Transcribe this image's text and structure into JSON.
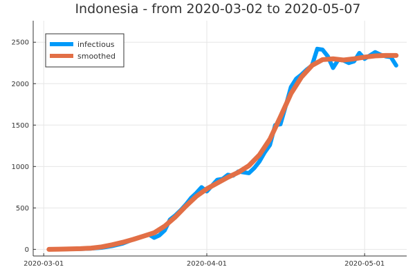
{
  "chart_data": {
    "type": "line",
    "title": "Indonesia - from 2020-03-02 to 2020-05-07",
    "xlabel": "",
    "ylabel": "",
    "x_start": "2020-03-02",
    "x_end": "2020-05-07",
    "xlim": [
      "2020-02-28",
      "2020-05-09"
    ],
    "ylim": [
      -80,
      2760
    ],
    "x_ticks": [
      "2020-03-01",
      "2020-04-01",
      "2020-05-01"
    ],
    "y_ticks": [
      0,
      500,
      1000,
      1500,
      2000,
      2500
    ],
    "grid": true,
    "legend_position": "top-left",
    "series": [
      {
        "name": "infectious",
        "color": "#009af9",
        "points": [
          [
            "2020-03-02",
            0
          ],
          [
            "2020-03-04",
            1
          ],
          [
            "2020-03-06",
            3
          ],
          [
            "2020-03-08",
            5
          ],
          [
            "2020-03-10",
            10
          ],
          [
            "2020-03-12",
            20
          ],
          [
            "2020-03-14",
            40
          ],
          [
            "2020-03-16",
            70
          ],
          [
            "2020-03-18",
            120
          ],
          [
            "2020-03-19",
            140
          ],
          [
            "2020-03-20",
            160
          ],
          [
            "2020-03-21",
            180
          ],
          [
            "2020-03-22",
            140
          ],
          [
            "2020-03-23",
            170
          ],
          [
            "2020-03-24",
            230
          ],
          [
            "2020-03-25",
            360
          ],
          [
            "2020-03-26",
            410
          ],
          [
            "2020-03-27",
            470
          ],
          [
            "2020-03-28",
            540
          ],
          [
            "2020-03-29",
            620
          ],
          [
            "2020-03-30",
            680
          ],
          [
            "2020-03-31",
            750
          ],
          [
            "2020-04-01",
            700
          ],
          [
            "2020-04-02",
            770
          ],
          [
            "2020-04-03",
            840
          ],
          [
            "2020-04-04",
            850
          ],
          [
            "2020-04-05",
            900
          ],
          [
            "2020-04-06",
            890
          ],
          [
            "2020-04-07",
            940
          ],
          [
            "2020-04-08",
            930
          ],
          [
            "2020-04-09",
            920
          ],
          [
            "2020-04-10",
            980
          ],
          [
            "2020-04-11",
            1060
          ],
          [
            "2020-04-12",
            1170
          ],
          [
            "2020-04-13",
            1260
          ],
          [
            "2020-04-14",
            1500
          ],
          [
            "2020-04-15",
            1510
          ],
          [
            "2020-04-16",
            1730
          ],
          [
            "2020-04-17",
            1960
          ],
          [
            "2020-04-18",
            2060
          ],
          [
            "2020-04-19",
            2110
          ],
          [
            "2020-04-20",
            2170
          ],
          [
            "2020-04-21",
            2220
          ],
          [
            "2020-04-22",
            2420
          ],
          [
            "2020-04-23",
            2410
          ],
          [
            "2020-04-24",
            2330
          ],
          [
            "2020-04-25",
            2190
          ],
          [
            "2020-04-26",
            2290
          ],
          [
            "2020-04-27",
            2280
          ],
          [
            "2020-04-28",
            2250
          ],
          [
            "2020-04-29",
            2270
          ],
          [
            "2020-04-30",
            2370
          ],
          [
            "2020-05-01",
            2300
          ],
          [
            "2020-05-02",
            2340
          ],
          [
            "2020-05-03",
            2380
          ],
          [
            "2020-05-04",
            2350
          ],
          [
            "2020-05-05",
            2330
          ],
          [
            "2020-05-06",
            2320
          ],
          [
            "2020-05-07",
            2220
          ]
        ]
      },
      {
        "name": "smoothed",
        "color": "#e26f46",
        "points": [
          [
            "2020-03-02",
            0
          ],
          [
            "2020-03-04",
            2
          ],
          [
            "2020-03-06",
            5
          ],
          [
            "2020-03-08",
            8
          ],
          [
            "2020-03-10",
            15
          ],
          [
            "2020-03-12",
            30
          ],
          [
            "2020-03-14",
            55
          ],
          [
            "2020-03-16",
            85
          ],
          [
            "2020-03-18",
            120
          ],
          [
            "2020-03-20",
            160
          ],
          [
            "2020-03-22",
            200
          ],
          [
            "2020-03-24",
            280
          ],
          [
            "2020-03-26",
            390
          ],
          [
            "2020-03-28",
            520
          ],
          [
            "2020-03-30",
            640
          ],
          [
            "2020-04-01",
            730
          ],
          [
            "2020-04-03",
            800
          ],
          [
            "2020-04-05",
            870
          ],
          [
            "2020-04-07",
            930
          ],
          [
            "2020-04-09",
            1010
          ],
          [
            "2020-04-11",
            1140
          ],
          [
            "2020-04-13",
            1330
          ],
          [
            "2020-04-15",
            1600
          ],
          [
            "2020-04-17",
            1880
          ],
          [
            "2020-04-19",
            2080
          ],
          [
            "2020-04-21",
            2220
          ],
          [
            "2020-04-23",
            2290
          ],
          [
            "2020-04-25",
            2300
          ],
          [
            "2020-04-27",
            2285
          ],
          [
            "2020-04-29",
            2300
          ],
          [
            "2020-05-01",
            2320
          ],
          [
            "2020-05-03",
            2335
          ],
          [
            "2020-05-05",
            2340
          ],
          [
            "2020-05-07",
            2340
          ]
        ]
      }
    ]
  }
}
